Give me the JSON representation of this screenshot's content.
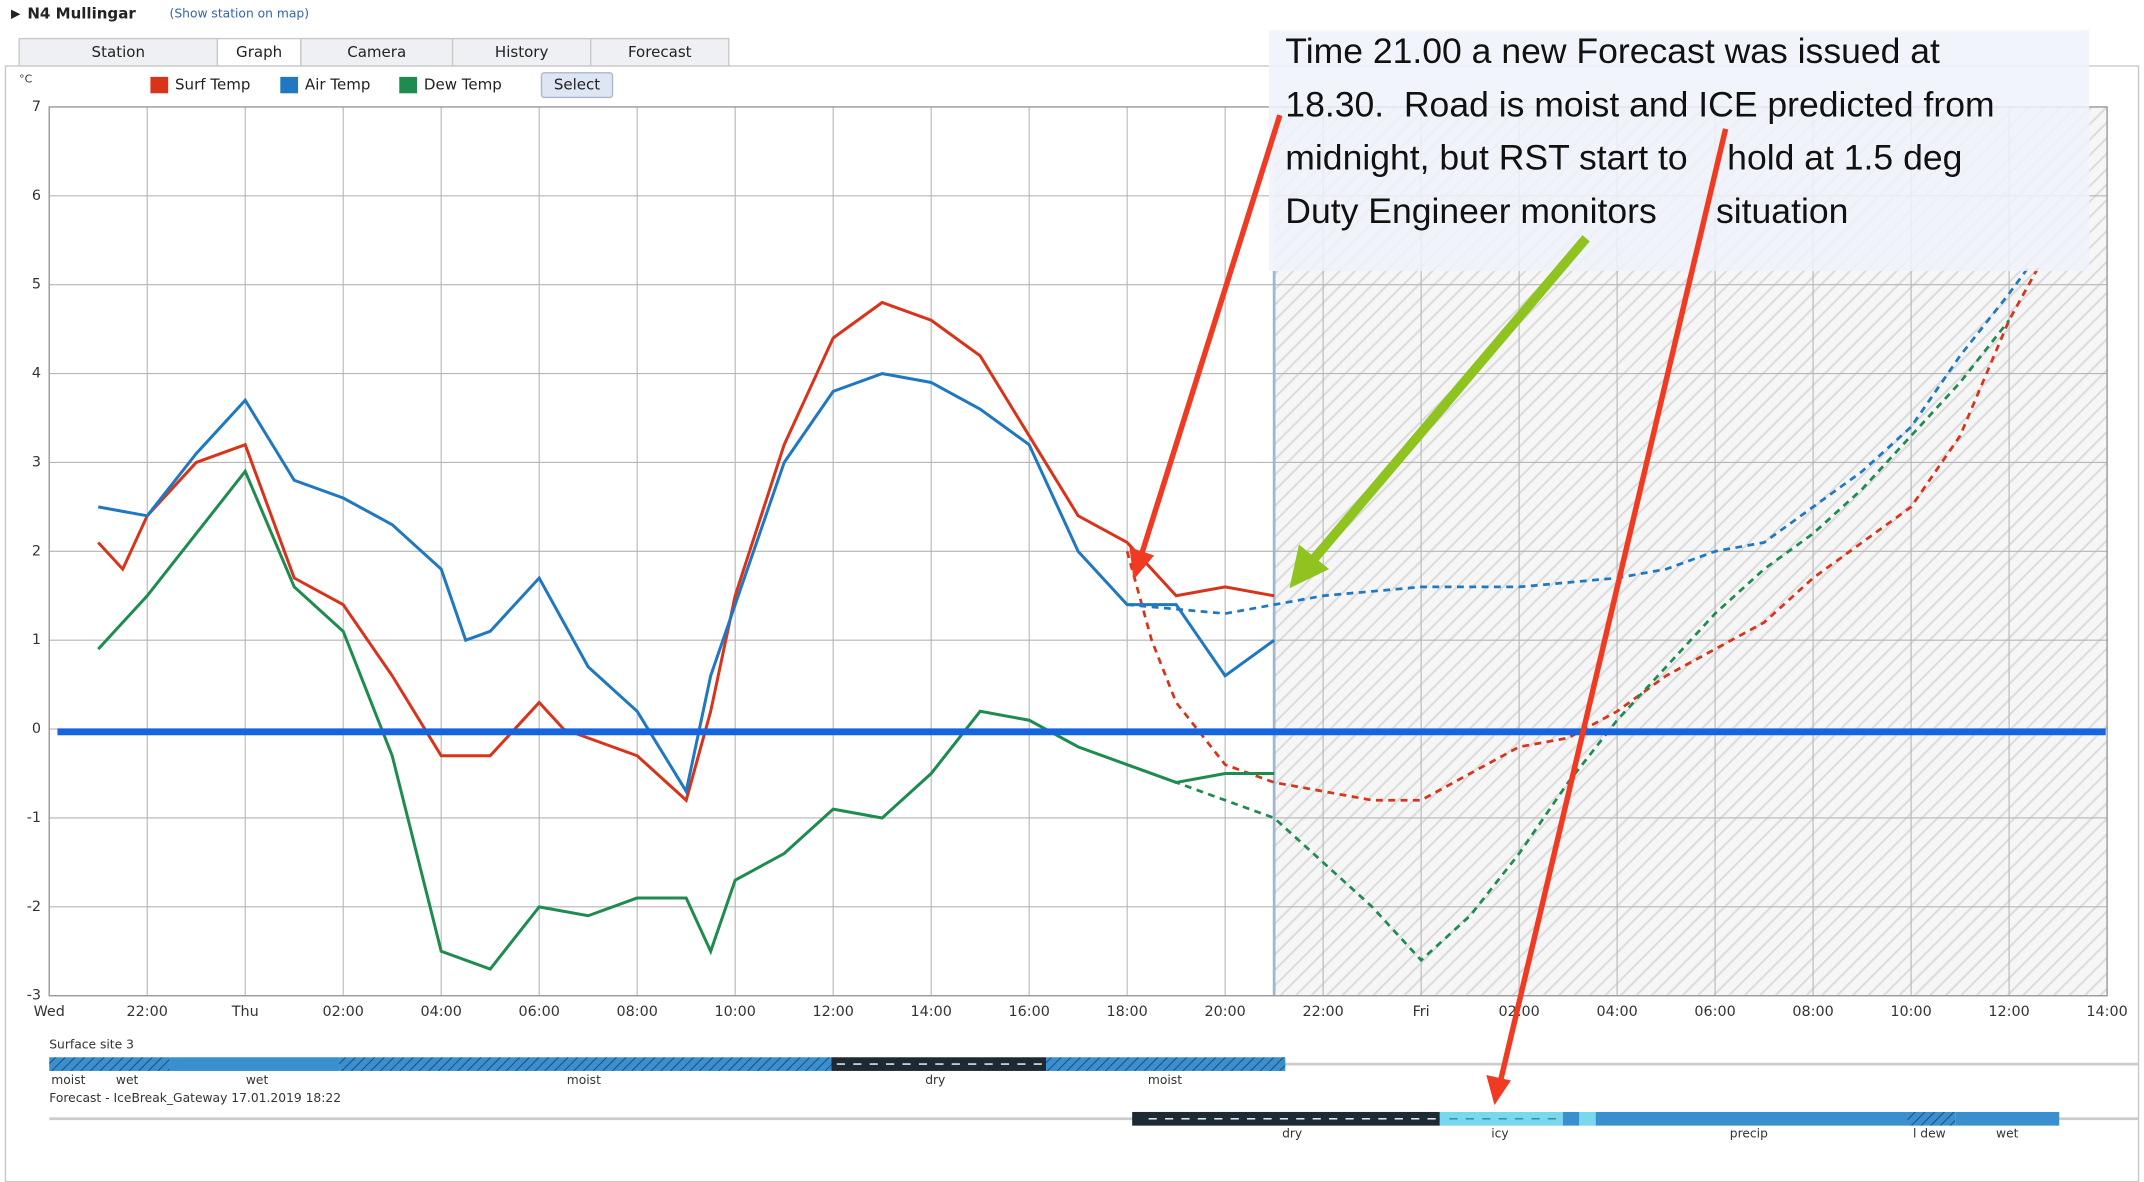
{
  "header": {
    "station": "N4 Mullingar",
    "map_link": "(Show station on map)"
  },
  "tabs": [
    "Station",
    "Graph",
    "Camera",
    "History",
    "Forecast"
  ],
  "select_button": "Select",
  "chart_data": {
    "type": "line",
    "y_unit": "°C",
    "xlim": [
      0,
      42
    ],
    "xticks": [
      {
        "value": 0,
        "label": "Wed"
      },
      {
        "value": 2,
        "label": "22:00"
      },
      {
        "value": 4,
        "label": "Thu"
      },
      {
        "value": 6,
        "label": "02:00"
      },
      {
        "value": 8,
        "label": "04:00"
      },
      {
        "value": 10,
        "label": "06:00"
      },
      {
        "value": 12,
        "label": "08:00"
      },
      {
        "value": 14,
        "label": "10:00"
      },
      {
        "value": 16,
        "label": "12:00"
      },
      {
        "value": 18,
        "label": "14:00"
      },
      {
        "value": 20,
        "label": "16:00"
      },
      {
        "value": 22,
        "label": "18:00"
      },
      {
        "value": 24,
        "label": "20:00"
      },
      {
        "value": 26,
        "label": "22:00"
      },
      {
        "value": 28,
        "label": "Fri"
      },
      {
        "value": 30,
        "label": "02:00"
      },
      {
        "value": 32,
        "label": "04:00"
      },
      {
        "value": 34,
        "label": "06:00"
      },
      {
        "value": 36,
        "label": "08:00"
      },
      {
        "value": 38,
        "label": "10:00"
      },
      {
        "value": 40,
        "label": "12:00"
      },
      {
        "value": 42,
        "label": "14:00"
      }
    ],
    "ylim": [
      -3,
      7
    ],
    "yticks": [
      -3,
      -2,
      -1,
      0,
      1,
      2,
      3,
      4,
      5,
      6,
      7
    ],
    "grid": true,
    "forecast_start": 25,
    "series": [
      {
        "name": "Surf Temp",
        "color": "#d9331a",
        "x": [
          1,
          1.5,
          2,
          3,
          3.5,
          4,
          5,
          6,
          7,
          8,
          9,
          10,
          10.5,
          11,
          12,
          13,
          13.5,
          14,
          15,
          16,
          17,
          18,
          19,
          20,
          21,
          22,
          23,
          24,
          25
        ],
        "values": [
          2.1,
          1.8,
          2.4,
          3.0,
          3.1,
          3.2,
          1.7,
          1.4,
          0.6,
          -0.3,
          -0.3,
          0.3,
          0.0,
          -0.1,
          -0.3,
          -0.8,
          0.2,
          1.5,
          3.2,
          4.4,
          4.8,
          4.6,
          4.2,
          3.3,
          2.4,
          2.1,
          1.5,
          1.6,
          1.5
        ],
        "forecast": {
          "x": [
            22,
            22.5,
            23,
            24,
            25,
            26,
            27,
            28,
            29,
            30,
            31,
            32,
            33,
            34,
            35,
            36,
            37,
            38,
            39,
            40,
            40.6
          ],
          "values": [
            2.0,
            1.0,
            0.3,
            -0.4,
            -0.6,
            -0.7,
            -0.8,
            -0.8,
            -0.5,
            -0.2,
            -0.1,
            0.2,
            0.6,
            0.9,
            1.2,
            1.7,
            2.1,
            2.5,
            3.3,
            4.6,
            5.2
          ]
        }
      },
      {
        "name": "Air Temp",
        "color": "#1f78c1",
        "x": [
          1,
          2,
          3,
          4,
          5,
          6,
          7,
          8,
          8.5,
          9,
          10,
          11,
          12,
          13,
          13.5,
          14,
          15,
          16,
          17,
          18,
          19,
          20,
          21,
          22,
          23,
          24,
          25
        ],
        "values": [
          2.5,
          2.4,
          3.1,
          3.7,
          2.8,
          2.6,
          2.3,
          1.8,
          1.0,
          1.1,
          1.7,
          0.7,
          0.2,
          -0.7,
          0.6,
          1.4,
          3.0,
          3.8,
          4.0,
          3.9,
          3.6,
          3.2,
          2.0,
          1.4,
          1.4,
          0.6,
          1.0
        ],
        "forecast": {
          "x": [
            22,
            24,
            26,
            28,
            30,
            32,
            33,
            34,
            35,
            36,
            37,
            38,
            39,
            40,
            40.4
          ],
          "values": [
            1.4,
            1.3,
            1.5,
            1.6,
            1.6,
            1.7,
            1.8,
            2.0,
            2.1,
            2.5,
            2.9,
            3.4,
            4.2,
            4.9,
            5.2
          ]
        }
      },
      {
        "name": "Dew Temp",
        "color": "#1e8c4e",
        "x": [
          1,
          2,
          3,
          4,
          5,
          6,
          7,
          8,
          9,
          10,
          11,
          12,
          13,
          13.5,
          14,
          15,
          16,
          17,
          18,
          19,
          20,
          21,
          22,
          23,
          24,
          25
        ],
        "values": [
          0.9,
          1.5,
          2.2,
          2.9,
          1.6,
          1.1,
          -0.3,
          -2.5,
          -2.7,
          -2.0,
          -2.1,
          -1.9,
          -1.9,
          -2.5,
          -1.7,
          -1.4,
          -0.9,
          -1.0,
          -0.5,
          0.2,
          0.1,
          -0.2,
          -0.4,
          -0.6,
          -0.5,
          -0.5
        ],
        "forecast": {
          "x": [
            22,
            24,
            25,
            26,
            27,
            28,
            29,
            30,
            31,
            32,
            33,
            34,
            35,
            36,
            37,
            38,
            39,
            40
          ],
          "values": [
            -0.4,
            -0.8,
            -1.0,
            -1.5,
            -2.0,
            -2.6,
            -2.1,
            -1.4,
            -0.6,
            0.1,
            0.7,
            1.3,
            1.8,
            2.2,
            2.7,
            3.3,
            3.9,
            4.6
          ]
        }
      }
    ]
  },
  "surface_site": {
    "title": "Surface site 3",
    "segments": [
      "moist",
      "wet",
      "wet",
      "moist",
      "dry",
      "moist"
    ]
  },
  "forecast_bar": {
    "title": "Forecast - IceBreak_Gateway 17.01.2019 18:22",
    "segments": [
      "dry",
      "icy",
      "precip",
      "l dew",
      "wet"
    ]
  },
  "annotation": {
    "lines": [
      "Time 21.00 a new Forecast was issued at",
      "18.30.  Road is moist and ICE predicted from",
      "midnight, but RST start to    hold at 1.5 deg",
      "Duty Engineer monitors      situation"
    ]
  }
}
